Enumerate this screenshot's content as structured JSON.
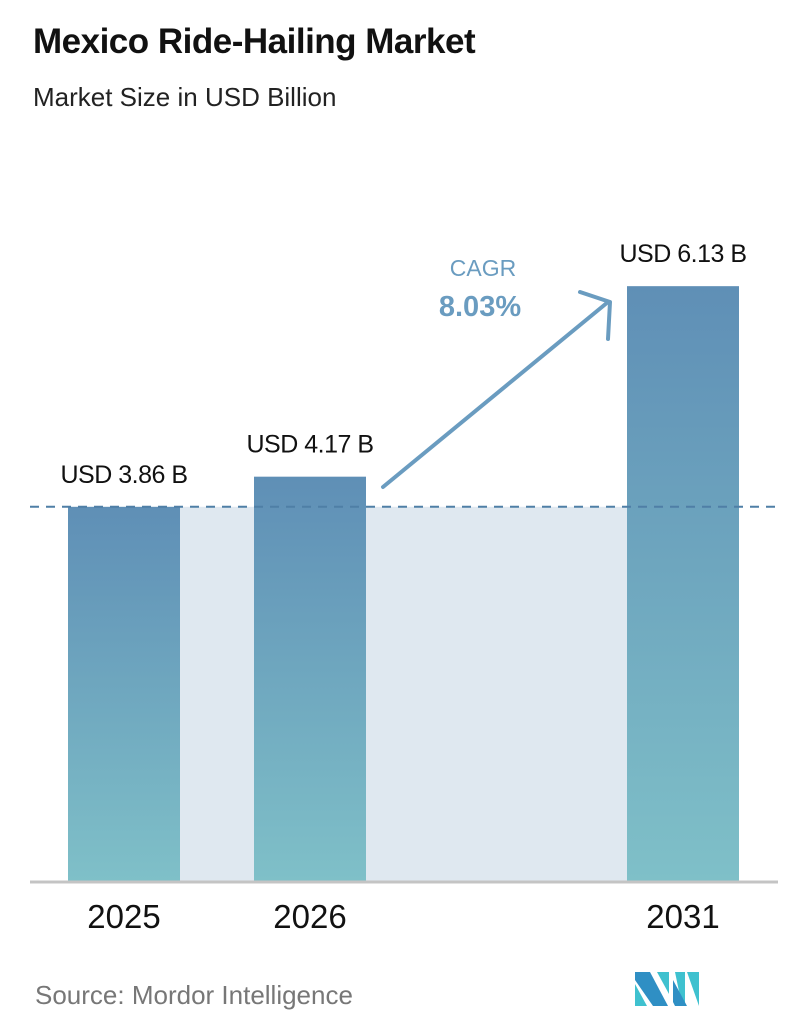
{
  "chart_data": {
    "type": "bar",
    "title": "Mexico Ride-Hailing Market",
    "subtitle": "Market Size in USD Billion",
    "categories": [
      "2025",
      "2026",
      "2031"
    ],
    "values": [
      3.86,
      4.17,
      6.13
    ],
    "data_labels": [
      "USD 3.86 B",
      "USD 4.17 B",
      "USD 6.13 B"
    ],
    "annotation": {
      "label": "CAGR",
      "value": "8.03%"
    },
    "ylim": [
      0,
      6.13
    ],
    "grid": false,
    "colors": {
      "bar_top": "#5f8fb6",
      "bar_bottom": "#7fc0c8",
      "band": "#dfe8f0",
      "accent": "#6a9cc0"
    }
  },
  "source": "Source:  Mordor Intelligence",
  "logo": "MI"
}
